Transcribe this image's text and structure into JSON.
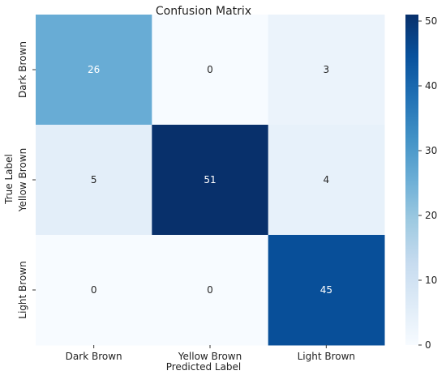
{
  "chart_data": {
    "type": "heatmap",
    "title": "Confusion Matrix",
    "xlabel": "Predicted Label",
    "ylabel": "True Label",
    "x_categories": [
      "Dark Brown",
      "Yellow Brown",
      "Light Brown"
    ],
    "y_categories": [
      "Dark Brown",
      "Yellow Brown",
      "Light Brown"
    ],
    "values": [
      [
        26,
        0,
        3
      ],
      [
        5,
        51,
        4
      ],
      [
        0,
        0,
        45
      ]
    ],
    "colorbar": {
      "range": [
        0,
        51
      ],
      "ticks": [
        "0",
        "10",
        "20",
        "30",
        "40",
        "50"
      ],
      "colormap": "Blues"
    },
    "colors": {
      "low": "#f7fbff",
      "high": "#08306b"
    }
  }
}
